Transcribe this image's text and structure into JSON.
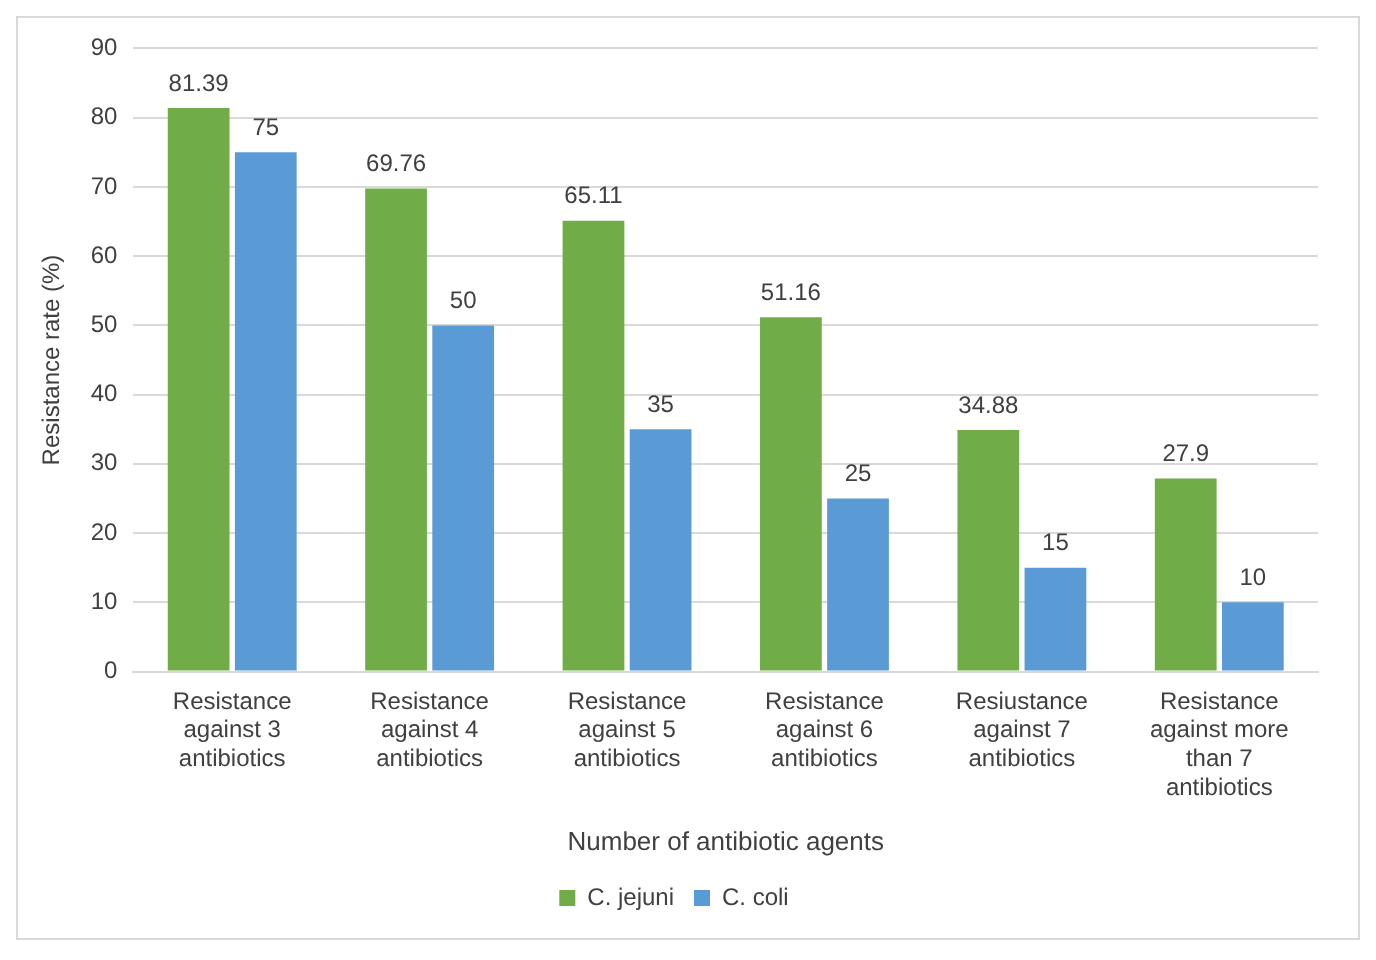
{
  "chart_data": {
    "type": "bar",
    "xlabel": "Number of antibiotic agents",
    "ylabel": "Resistance rate (%)",
    "categories": [
      "Resistance against 3 antibiotics",
      "Resistance against 4 antibiotics",
      "Resistance against 5 antibiotics",
      "Resistance against 6 antibiotics",
      "Resiustance against 7 antibiotics",
      "Resistance against more than 7 antibiotics"
    ],
    "series": [
      {
        "name": "C. jejuni",
        "color": "#70ad47",
        "values": [
          81.39,
          69.76,
          65.11,
          51.16,
          34.88,
          27.9
        ]
      },
      {
        "name": "C. coli",
        "color": "#5b9bd5",
        "values": [
          75,
          50,
          35,
          25,
          15,
          10
        ]
      }
    ],
    "ylim": [
      0,
      90
    ],
    "yticks": [
      0,
      10,
      20,
      30,
      40,
      50,
      60,
      70,
      80,
      90
    ],
    "grid": "y",
    "legend": "bottom",
    "data_labels": true
  }
}
